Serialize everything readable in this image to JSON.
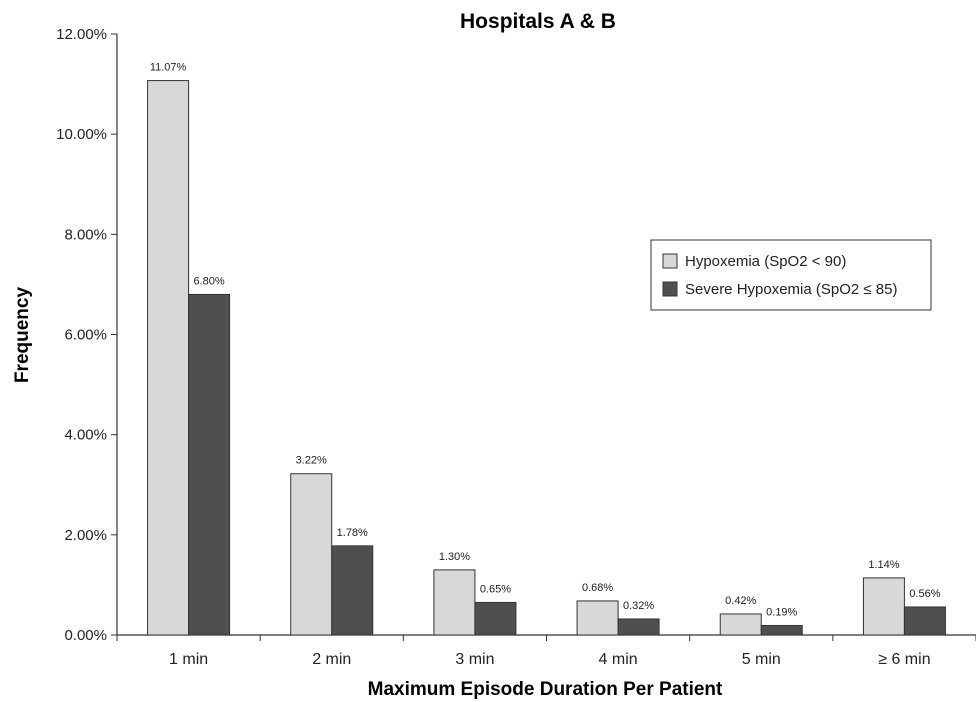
{
  "chart_data": {
    "type": "bar",
    "title": "Hospitals A & B",
    "xlabel": "Maximum Episode Duration Per Patient",
    "ylabel": "Frequency",
    "categories": [
      "1 min",
      "2 min",
      "3 min",
      "4 min",
      "5 min",
      "≥ 6 min"
    ],
    "series": [
      {
        "name": "Hypoxemia (SpO2 < 90)",
        "values": [
          11.07,
          3.22,
          1.3,
          0.68,
          0.42,
          1.14
        ],
        "labels": [
          "11.07%",
          "3.22%",
          "1.30%",
          "0.68%",
          "0.42%",
          "1.14%"
        ],
        "color": "#d8d8d8"
      },
      {
        "name": "Severe Hypoxemia (SpO2 ≤ 85)",
        "values": [
          6.8,
          1.78,
          0.65,
          0.32,
          0.19,
          0.56
        ],
        "labels": [
          "6.80%",
          "1.78%",
          "0.65%",
          "0.32%",
          "0.19%",
          "0.56%"
        ],
        "color": "#4f4f4f"
      }
    ],
    "ylim": [
      0,
      12
    ],
    "yticks": [
      0,
      2,
      4,
      6,
      8,
      10,
      12
    ],
    "ytick_labels": [
      "0.00%",
      "2.00%",
      "4.00%",
      "6.00%",
      "8.00%",
      "10.00%",
      "12.00%"
    ],
    "grid": false,
    "legend_position": "right"
  }
}
